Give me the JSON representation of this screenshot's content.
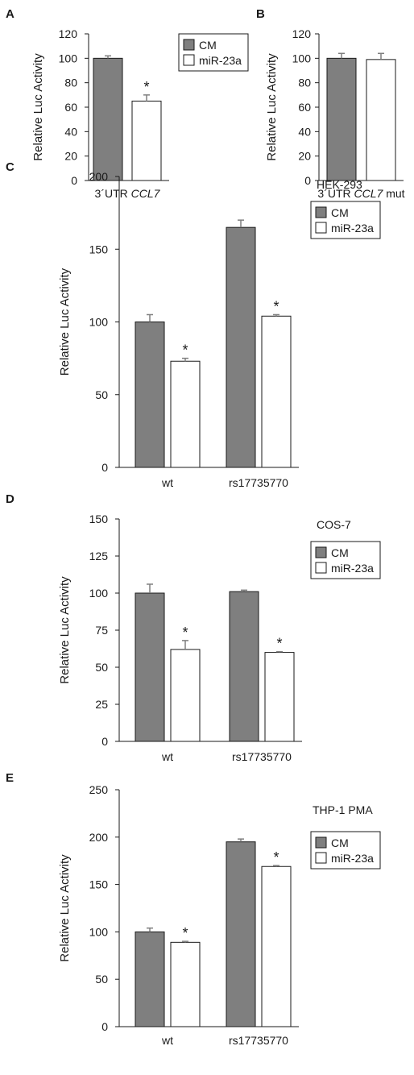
{
  "colors": {
    "cm": "#7f7f7f",
    "mir": "#ffffff",
    "stroke": "#1a1a1a",
    "err": "#7f7f7f"
  },
  "chart_data": [
    {
      "panel": "A",
      "type": "bar",
      "ylabel": "Relative Luc Activity",
      "yticks": [
        "0",
        "20",
        "40",
        "60",
        "80",
        "100",
        "120"
      ],
      "ylim": [
        0,
        120
      ],
      "groups": [
        {
          "label_parts": [
            {
              "t": "3´UTR ",
              "i": false
            },
            {
              "t": "CCL7",
              "i": true
            }
          ]
        }
      ],
      "series": [
        {
          "name": "CM",
          "values": [
            100
          ],
          "errors": [
            2
          ]
        },
        {
          "name": "miR-23a",
          "values": [
            65
          ],
          "errors": [
            5
          ]
        }
      ],
      "significance": [
        [
          false,
          true
        ]
      ],
      "legend": {
        "items": [
          "CM",
          "miR-23a"
        ]
      }
    },
    {
      "panel": "B",
      "type": "bar",
      "ylabel": "Relative Luc Activity",
      "yticks": [
        "0",
        "20",
        "40",
        "60",
        "80",
        "100",
        "120"
      ],
      "ylim": [
        0,
        120
      ],
      "groups": [
        {
          "label_parts": [
            {
              "t": "3´UTR ",
              "i": false
            },
            {
              "t": "CCL7",
              "i": true
            },
            {
              "t": " mut",
              "i": false
            }
          ]
        }
      ],
      "series": [
        {
          "name": "CM",
          "values": [
            100
          ],
          "errors": [
            4
          ]
        },
        {
          "name": "miR-23a",
          "values": [
            99
          ],
          "errors": [
            5
          ]
        }
      ],
      "significance": [
        [
          false,
          false
        ]
      ]
    },
    {
      "panel": "C",
      "type": "bar",
      "condition": "HEK-293",
      "ylabel": "Relative Luc Activity",
      "yticks": [
        "0",
        "50",
        "100",
        "150",
        "200"
      ],
      "ylim": [
        0,
        200
      ],
      "groups": [
        {
          "label_parts": [
            {
              "t": "wt",
              "i": false
            }
          ]
        },
        {
          "label_parts": [
            {
              "t": "rs17735770",
              "i": false
            }
          ]
        }
      ],
      "series": [
        {
          "name": "CM",
          "values": [
            100,
            165
          ],
          "errors": [
            5,
            5
          ]
        },
        {
          "name": "miR-23a",
          "values": [
            73,
            104
          ],
          "errors": [
            2,
            1
          ]
        }
      ],
      "significance": [
        [
          false,
          true
        ],
        [
          false,
          true
        ]
      ],
      "legend": {
        "items": [
          "CM",
          "miR-23a"
        ]
      }
    },
    {
      "panel": "D",
      "type": "bar",
      "condition": "COS-7",
      "ylabel": "Relative Luc Activity",
      "yticks": [
        "0",
        "25",
        "50",
        "75",
        "100",
        "125",
        "150"
      ],
      "ylim": [
        0,
        150
      ],
      "groups": [
        {
          "label_parts": [
            {
              "t": "wt",
              "i": false
            }
          ]
        },
        {
          "label_parts": [
            {
              "t": "rs17735770",
              "i": false
            }
          ]
        }
      ],
      "series": [
        {
          "name": "CM",
          "values": [
            100,
            101
          ],
          "errors": [
            6,
            1
          ]
        },
        {
          "name": "miR-23a",
          "values": [
            62,
            60
          ],
          "errors": [
            6,
            0.5
          ]
        }
      ],
      "significance": [
        [
          false,
          true
        ],
        [
          false,
          true
        ]
      ],
      "legend": {
        "items": [
          "CM",
          "miR-23a"
        ]
      }
    },
    {
      "panel": "E",
      "type": "bar",
      "condition": "THP-1 PMA",
      "ylabel": "Relative Luc Activity",
      "yticks": [
        "0",
        "50",
        "100",
        "150",
        "200",
        "250"
      ],
      "ylim": [
        0,
        250
      ],
      "groups": [
        {
          "label_parts": [
            {
              "t": "wt",
              "i": false
            }
          ]
        },
        {
          "label_parts": [
            {
              "t": "rs17735770",
              "i": false
            }
          ]
        }
      ],
      "series": [
        {
          "name": "CM",
          "values": [
            100,
            195
          ],
          "errors": [
            4,
            3
          ]
        },
        {
          "name": "miR-23a",
          "values": [
            89,
            169
          ],
          "errors": [
            1,
            1
          ]
        }
      ],
      "significance": [
        [
          false,
          true
        ],
        [
          false,
          true
        ]
      ],
      "legend": {
        "items": [
          "CM",
          "miR-23a"
        ]
      }
    }
  ]
}
